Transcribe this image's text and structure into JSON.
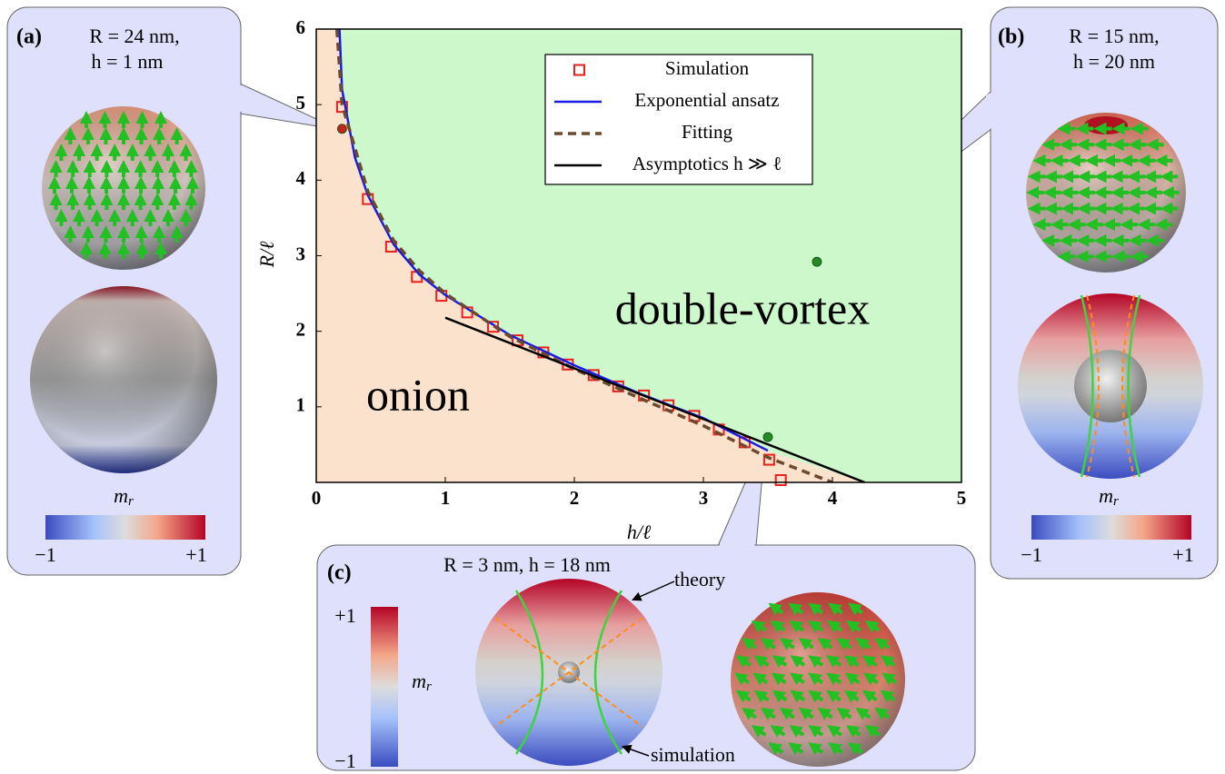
{
  "chart_data": {
    "type": "line",
    "xlabel": "h/ℓ",
    "ylabel": "R/ℓ",
    "xlim": [
      0,
      5
    ],
    "ylim": [
      0,
      6
    ],
    "xticks": [
      0,
      1,
      2,
      3,
      4,
      5
    ],
    "yticks": [
      1,
      2,
      3,
      4,
      5,
      6
    ],
    "region_labels": [
      "onion",
      "double-vortex"
    ],
    "region_colors": [
      "#fbe2cc",
      "#ccf8cc"
    ],
    "legend": "upper center",
    "series": [
      {
        "name": "Simulation",
        "color": "#e8201c",
        "marker": "square",
        "line_style": "none",
        "x": [
          0.2,
          0.4,
          0.58,
          0.78,
          0.97,
          1.17,
          1.37,
          1.56,
          1.76,
          1.95,
          2.15,
          2.34,
          2.54,
          2.73,
          2.93,
          3.12,
          3.32,
          3.51,
          3.6
        ],
        "values": [
          4.97,
          3.75,
          3.12,
          2.72,
          2.47,
          2.25,
          2.06,
          1.88,
          1.72,
          1.56,
          1.42,
          1.27,
          1.15,
          1.02,
          0.88,
          0.7,
          0.53,
          0.3,
          0.03
        ]
      },
      {
        "name": "Exponential ansatz",
        "color": "#1a1ae6",
        "line_style": "solid",
        "x": [
          0.18,
          0.2,
          0.3,
          0.4,
          0.6,
          0.8,
          1.0,
          1.5,
          2.0,
          2.5,
          3.0,
          3.5
        ],
        "values": [
          6,
          5.2,
          4.3,
          3.8,
          3.15,
          2.75,
          2.48,
          1.95,
          1.55,
          1.18,
          0.85,
          0.42
        ]
      },
      {
        "name": "Fitting",
        "color": "#6b4a2e",
        "line_style": "dashed",
        "x": [
          0.16,
          0.2,
          0.4,
          0.6,
          0.8,
          1.0,
          1.5,
          2.0,
          2.5,
          3.0,
          3.5,
          4.0
        ],
        "values": [
          6,
          5.0,
          3.85,
          3.2,
          2.8,
          2.5,
          1.93,
          1.5,
          1.12,
          0.75,
          0.33,
          0
        ]
      },
      {
        "name": "Asymptotics h ≫ ℓ",
        "color": "#000000",
        "line_style": "solid",
        "x": [
          1.0,
          4.25
        ],
        "values": [
          2.18,
          0
        ]
      }
    ],
    "markers": [
      {
        "x": 0.2,
        "y": 4.68,
        "color": "#c0281e"
      },
      {
        "x": 3.88,
        "y": 2.92,
        "color": "#238b23"
      },
      {
        "x": 3.5,
        "y": 0.6,
        "color": "#238b23"
      }
    ]
  },
  "panels": [
    {
      "label": "(a)",
      "text": [
        "R = 24 nm,",
        "h = 1 nm"
      ],
      "colorbar": {
        "label": {
          "symbol": "m",
          "subscript": "r"
        },
        "min": "−1",
        "max": "+1"
      }
    },
    {
      "label": "(b)",
      "text": [
        "R = 15 nm,",
        "h = 20 nm"
      ],
      "colorbar": {
        "label": {
          "symbol": "m",
          "subscript": "r"
        },
        "min": "−1",
        "max": "+1"
      }
    },
    {
      "label": "(c)",
      "text": [
        "R = 3 nm, h = 18 nm"
      ],
      "colorbar": {
        "label": {
          "symbol": "m",
          "subscript": "r"
        },
        "min": "−1",
        "max": "+1"
      },
      "annotations": [
        "theory",
        "simulation"
      ]
    }
  ]
}
